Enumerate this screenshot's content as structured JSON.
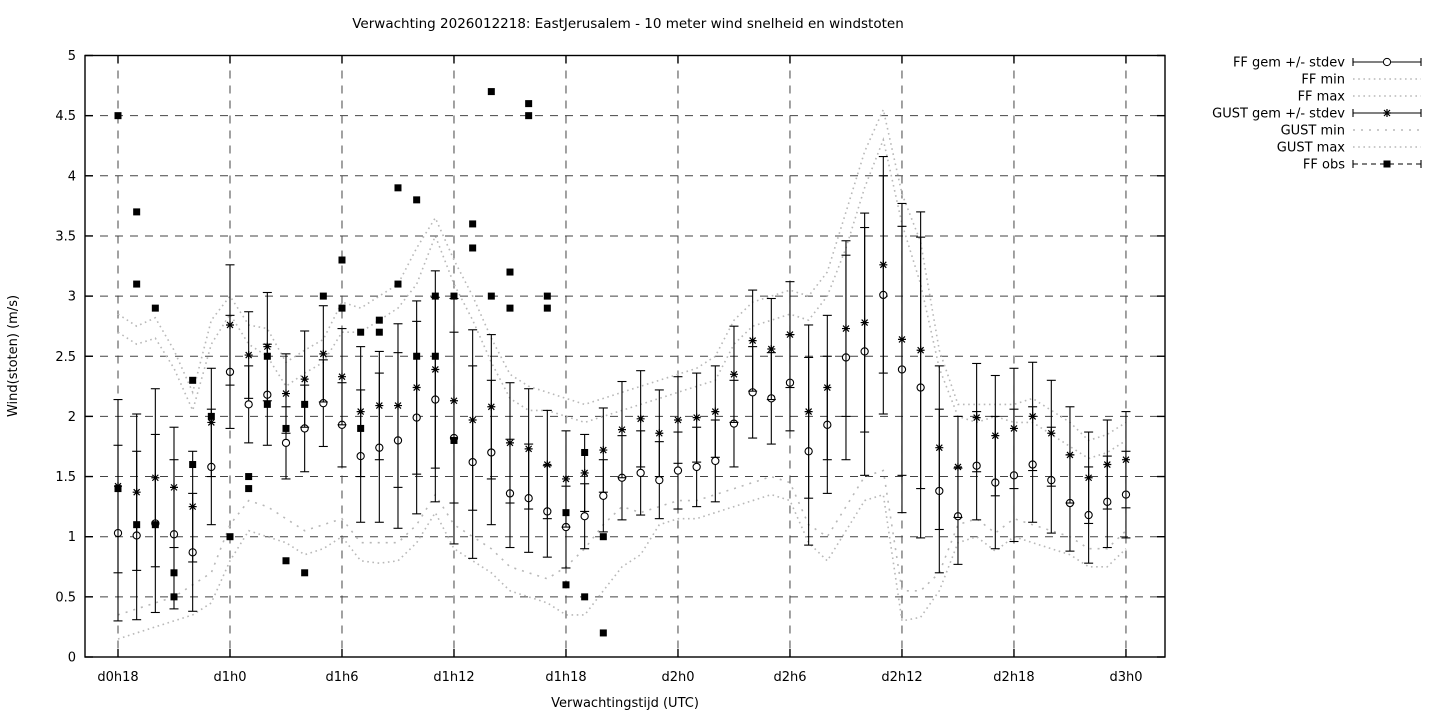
{
  "chart_data": {
    "type": "line",
    "title": "Verwachting 2026012218: EastJerusalem - 10 meter wind snelheid en windstoten",
    "xlabel": "Verwachtingstijd (UTC)",
    "ylabel": "Wind(stoten) (m/s)",
    "ylim": [
      0,
      5
    ],
    "grid": true,
    "legend_position": "outside-top-right",
    "yticks": [
      "0",
      "0.5",
      "1",
      "1.5",
      "2",
      "2.5",
      "3",
      "3.5",
      "4",
      "4.5",
      "5"
    ],
    "ytick_values": [
      0,
      0.5,
      1,
      1.5,
      2,
      2.5,
      3,
      3.5,
      4,
      4.5,
      5
    ],
    "xticks": [
      {
        "label": "d0h18",
        "hour": 0
      },
      {
        "label": "d1h0",
        "hour": 6
      },
      {
        "label": "d1h6",
        "hour": 12
      },
      {
        "label": "d1h12",
        "hour": 18
      },
      {
        "label": "d1h18",
        "hour": 24
      },
      {
        "label": "d2h0",
        "hour": 30
      },
      {
        "label": "d2h6",
        "hour": 36
      },
      {
        "label": "d2h12",
        "hour": 42
      },
      {
        "label": "d2h18",
        "hour": 48
      },
      {
        "label": "d3h0",
        "hour": 54
      }
    ],
    "hours_range": [
      0,
      54
    ],
    "legend": [
      {
        "label": "FF gem +/- stdev",
        "style": "errorbar-circle"
      },
      {
        "label": "FF min",
        "style": "dotted"
      },
      {
        "label": "FF max",
        "style": "dotted"
      },
      {
        "label": "GUST gem +/- stdev",
        "style": "errorbar-star"
      },
      {
        "label": "GUST min",
        "style": "dotted-sparse"
      },
      {
        "label": "GUST max",
        "style": "dotted"
      },
      {
        "label": "FF obs",
        "style": "dashed-square"
      }
    ],
    "colors": {
      "series": "#000000",
      "envelope": "#b8b8b8",
      "grid": "#303030",
      "background": "#ffffff"
    },
    "series": {
      "ff_mean": [
        1.03,
        1.01,
        1.11,
        1.02,
        0.87,
        1.58,
        2.37,
        2.1,
        2.18,
        1.78,
        1.9,
        2.11,
        1.93,
        1.67,
        1.74,
        1.8,
        1.99,
        2.14,
        1.82,
        1.62,
        1.7,
        1.36,
        1.32,
        1.21,
        1.08,
        1.17,
        1.34,
        1.49,
        1.53,
        1.47,
        1.55,
        1.58,
        1.63,
        1.94,
        2.2,
        2.15,
        2.28,
        1.71,
        1.93,
        2.49,
        2.54,
        3.01,
        2.39,
        2.24,
        1.38,
        1.17,
        1.59,
        1.45,
        1.51,
        1.6,
        1.47,
        1.28,
        1.18,
        1.29,
        1.35
      ],
      "ff_err": [
        0.73,
        0.7,
        0.74,
        0.62,
        0.49,
        0.48,
        0.47,
        0.32,
        0.42,
        0.3,
        0.36,
        0.36,
        0.35,
        0.55,
        0.62,
        0.73,
        0.8,
        0.85,
        0.88,
        0.8,
        0.6,
        0.45,
        0.45,
        0.38,
        0.34,
        0.27,
        0.3,
        0.35,
        0.35,
        0.32,
        0.32,
        0.33,
        0.34,
        0.36,
        0.38,
        0.38,
        0.4,
        0.78,
        0.57,
        0.85,
        1.03,
        0.99,
        1.19,
        1.25,
        0.68,
        0.4,
        0.45,
        0.55,
        0.55,
        0.48,
        0.44,
        0.4,
        0.4,
        0.38,
        0.36
      ],
      "gust_mean": [
        1.42,
        1.37,
        1.49,
        1.41,
        1.25,
        1.95,
        2.76,
        2.51,
        2.58,
        2.19,
        2.31,
        2.52,
        2.33,
        2.04,
        2.09,
        2.09,
        2.24,
        2.39,
        2.13,
        1.97,
        2.08,
        1.78,
        1.73,
        1.6,
        1.48,
        1.53,
        1.72,
        1.89,
        1.98,
        1.86,
        1.97,
        1.99,
        2.04,
        2.35,
        2.63,
        2.56,
        2.68,
        2.04,
        2.24,
        2.73,
        2.78,
        3.26,
        2.64,
        2.55,
        1.74,
        1.58,
        1.99,
        1.84,
        1.9,
        2.0,
        1.86,
        1.68,
        1.49,
        1.6,
        1.64
      ],
      "gust_err": [
        0.72,
        0.65,
        0.74,
        0.5,
        0.46,
        0.45,
        0.5,
        0.36,
        0.45,
        0.33,
        0.4,
        0.4,
        0.4,
        0.54,
        0.45,
        0.68,
        0.72,
        0.82,
        0.85,
        0.75,
        0.6,
        0.5,
        0.5,
        0.45,
        0.4,
        0.32,
        0.35,
        0.4,
        0.4,
        0.36,
        0.36,
        0.37,
        0.38,
        0.4,
        0.42,
        0.42,
        0.44,
        0.72,
        0.6,
        0.73,
        0.91,
        0.9,
        1.13,
        1.15,
        0.68,
        0.42,
        0.45,
        0.5,
        0.5,
        0.45,
        0.44,
        0.4,
        0.38,
        0.37,
        0.4
      ],
      "ff_min": [
        0.15,
        0.2,
        0.25,
        0.3,
        0.35,
        0.45,
        0.8,
        1.05,
        1.0,
        0.95,
        0.85,
        0.9,
        1.0,
        0.8,
        0.78,
        0.8,
        0.95,
        1.2,
        0.9,
        0.8,
        0.7,
        0.55,
        0.5,
        0.45,
        0.35,
        0.35,
        0.55,
        0.75,
        0.85,
        1.1,
        1.15,
        1.15,
        1.2,
        1.25,
        1.3,
        1.35,
        1.3,
        0.95,
        0.8,
        1.05,
        1.3,
        1.35,
        0.3,
        0.33,
        0.55,
        0.95,
        1.0,
        0.88,
        1.0,
        0.95,
        0.9,
        0.85,
        0.75,
        0.75,
        0.9
      ],
      "gust_min": [
        0.35,
        0.4,
        0.45,
        0.5,
        0.6,
        0.7,
        1.1,
        1.3,
        1.25,
        1.15,
        1.05,
        1.1,
        1.15,
        0.95,
        0.95,
        0.95,
        1.1,
        1.35,
        1.1,
        1.0,
        0.9,
        0.75,
        0.7,
        0.65,
        0.75,
        0.9,
        1.1,
        1.25,
        1.2,
        1.25,
        1.3,
        1.3,
        1.35,
        1.4,
        1.45,
        1.5,
        1.45,
        1.1,
        1.0,
        1.25,
        1.5,
        1.55,
        0.55,
        0.55,
        0.7,
        1.1,
        1.15,
        1.03,
        1.15,
        1.1,
        1.05,
        1.0,
        0.9,
        0.9,
        1.05
      ],
      "ff_max": [
        2.7,
        2.6,
        2.65,
        2.4,
        2.05,
        2.6,
        2.85,
        2.6,
        2.5,
        2.25,
        2.36,
        2.45,
        2.7,
        2.7,
        2.8,
        2.9,
        3.1,
        3.5,
        3.1,
        2.8,
        2.45,
        2.15,
        2.05,
        2.05,
        2.0,
        1.95,
        2.0,
        2.05,
        2.1,
        2.15,
        2.2,
        2.25,
        2.3,
        2.6,
        2.75,
        2.8,
        2.85,
        2.8,
        3.0,
        3.4,
        3.9,
        4.3,
        3.6,
        3.1,
        2.4,
        2.0,
        1.95,
        2.0,
        1.95,
        1.95,
        1.85,
        1.75,
        1.65,
        1.7,
        1.8
      ],
      "gust_max": [
        2.85,
        2.75,
        2.82,
        2.55,
        2.2,
        2.8,
        3.0,
        2.76,
        2.73,
        2.45,
        2.55,
        2.64,
        2.95,
        2.9,
        3.0,
        3.1,
        3.4,
        3.65,
        3.3,
        3.0,
        2.65,
        2.35,
        2.25,
        2.2,
        2.15,
        2.1,
        2.15,
        2.2,
        2.25,
        2.3,
        2.35,
        2.4,
        2.5,
        2.8,
        2.95,
        3.0,
        3.05,
        3.0,
        3.2,
        3.7,
        4.2,
        4.55,
        3.85,
        3.45,
        2.55,
        2.1,
        2.1,
        2.1,
        2.1,
        2.15,
        2.05,
        1.95,
        1.8,
        1.85,
        1.95
      ]
    },
    "obs_points": [
      [
        0,
        4.5
      ],
      [
        0,
        1.4
      ],
      [
        1,
        3.7
      ],
      [
        1,
        3.1
      ],
      [
        1,
        1.1
      ],
      [
        2,
        2.9
      ],
      [
        2,
        1.1
      ],
      [
        3,
        0.7
      ],
      [
        3,
        0.5
      ],
      [
        4,
        2.3
      ],
      [
        4,
        1.6
      ],
      [
        5,
        2.0
      ],
      [
        6,
        1.0
      ],
      [
        7,
        1.5
      ],
      [
        7,
        1.4
      ],
      [
        8,
        2.5
      ],
      [
        8,
        2.1
      ],
      [
        9,
        1.9
      ],
      [
        9,
        0.8
      ],
      [
        10,
        2.1
      ],
      [
        10,
        0.7
      ],
      [
        11,
        3.0
      ],
      [
        12,
        3.3
      ],
      [
        12,
        2.9
      ],
      [
        13,
        2.7
      ],
      [
        13,
        1.9
      ],
      [
        14,
        2.8
      ],
      [
        14,
        2.7
      ],
      [
        15,
        3.9
      ],
      [
        15,
        3.1
      ],
      [
        16,
        3.8
      ],
      [
        16,
        2.5
      ],
      [
        17,
        3.0
      ],
      [
        17,
        2.5
      ],
      [
        18,
        3.0
      ],
      [
        18,
        1.8
      ],
      [
        19,
        3.6
      ],
      [
        19,
        3.4
      ],
      [
        20,
        4.7
      ],
      [
        20,
        3.0
      ],
      [
        21,
        3.2
      ],
      [
        21,
        2.9
      ],
      [
        22,
        4.6
      ],
      [
        22,
        4.5
      ],
      [
        23,
        3.0
      ],
      [
        23,
        2.9
      ],
      [
        24,
        1.2
      ],
      [
        24,
        0.6
      ],
      [
        25,
        1.7
      ],
      [
        25,
        0.5
      ],
      [
        26,
        1.0
      ],
      [
        26,
        0.2
      ]
    ]
  }
}
